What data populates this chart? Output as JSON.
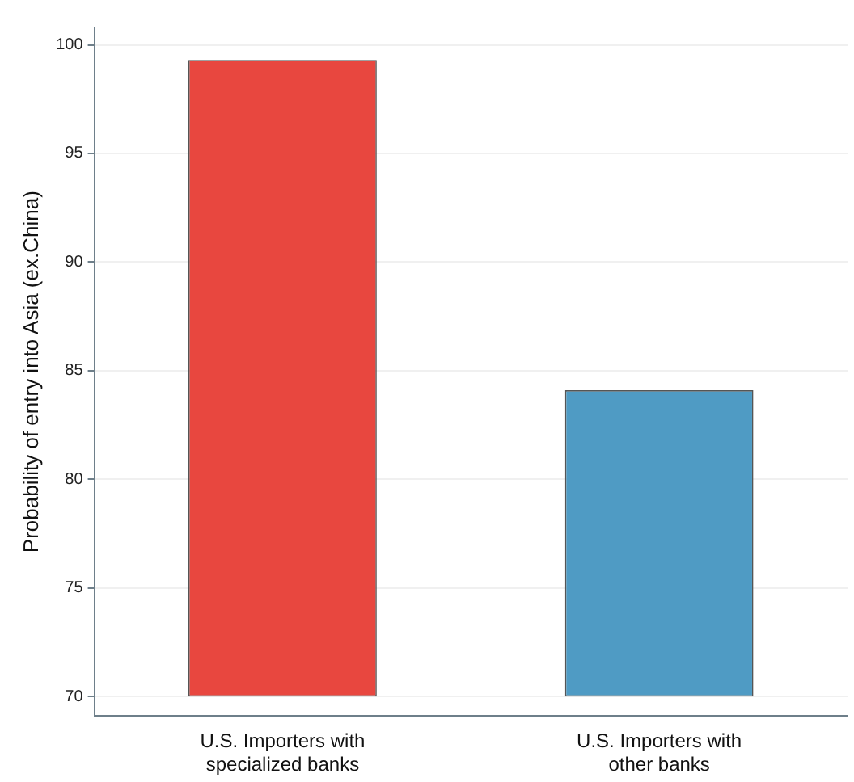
{
  "chart_data": {
    "type": "bar",
    "ylabel": "Probability of entry into Asia (ex.China)",
    "categories": [
      "U.S. Importers with\nspecialized banks",
      "U.S. Importers with\nother banks"
    ],
    "values": [
      29.3,
      14.1
    ],
    "base": [
      70,
      70
    ],
    "colors": [
      "#e8473f",
      "#4f9bc4"
    ],
    "ylim": [
      69.1,
      100.8
    ],
    "yticks": [
      70,
      75,
      80,
      85,
      90,
      95,
      100
    ],
    "grid": "y",
    "legend": false
  }
}
